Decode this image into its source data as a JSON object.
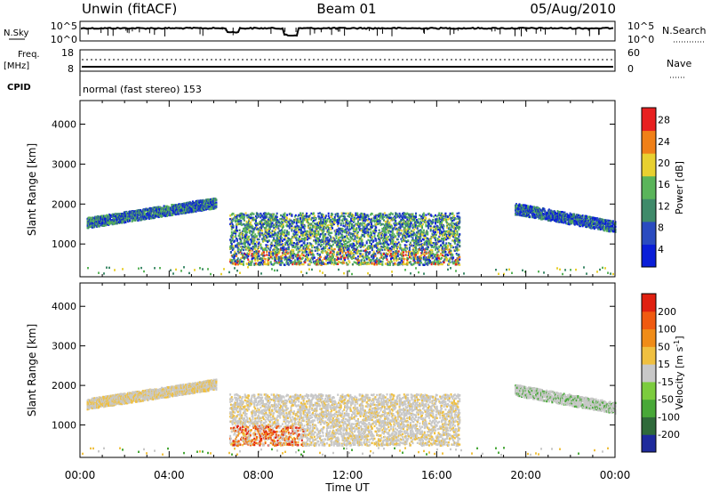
{
  "header": {
    "station": "Unwin (fitACF)",
    "beam": "Beam 01",
    "date": "05/Aug/2010"
  },
  "strip_labels": {
    "nsky": "N.Sky",
    "nsky_hi": "10^5",
    "nsky_lo": "10^0",
    "nsearch": "N.Search",
    "nsearch_hi": "10^5",
    "nsearch_lo": "10^0",
    "freq_top": "Freq.",
    "freq_unit": "[MHz]",
    "freq_hi": "18",
    "freq_lo": "8",
    "nave": "Nave",
    "nave_hi": "60",
    "nave_lo": "0",
    "cpid": "CPID",
    "cpid_text": "normal (fast stereo) 153"
  },
  "chart_data": [
    {
      "type": "heatmap",
      "name": "power",
      "ylabel": "Slant Range [km]",
      "xlabel": "",
      "xlim": [
        0,
        24
      ],
      "ylim": [
        180,
        4590
      ],
      "y_ticks": [
        1000,
        2000,
        3000,
        4000
      ],
      "colorbar": {
        "label": "Power [dB]",
        "ticks": [
          "4",
          "8",
          "12",
          "16",
          "20",
          "24",
          "28"
        ],
        "colors": [
          "#0a1ed8",
          "#2a4bc0",
          "#3f8a6a",
          "#5ab45a",
          "#e8d030",
          "#f08018",
          "#e82020"
        ]
      },
      "echo_regions": [
        {
          "t": [
            0.3,
            6.1
          ],
          "range_start": [
            1550,
            2050
          ],
          "width_km": 260
        },
        {
          "t": [
            6.7,
            17.0
          ],
          "range": [
            500,
            1800
          ]
        },
        {
          "t": [
            19.5,
            24.0
          ],
          "range_start": [
            1900,
            1450
          ],
          "width_km": 280
        }
      ]
    },
    {
      "type": "heatmap",
      "name": "velocity",
      "ylabel": "Slant Range [km]",
      "xlabel": "Time UT",
      "xlim": [
        0,
        24
      ],
      "ylim": [
        180,
        4590
      ],
      "y_ticks": [
        1000,
        2000,
        3000,
        4000
      ],
      "x_ticks": [
        "00:00",
        "04:00",
        "08:00",
        "12:00",
        "16:00",
        "20:00",
        "00:00"
      ],
      "colorbar": {
        "label": "Velocity [m s^-1]",
        "ticks": [
          "200",
          "100",
          "50",
          "15",
          "-15",
          "-50",
          "-100",
          "-200"
        ],
        "colors": [
          "#1e2a9c",
          "#2f6a3a",
          "#48a838",
          "#7ccc3e",
          "#c8c8c8",
          "#f0c040",
          "#f08c18",
          "#f05a10",
          "#e02010"
        ]
      }
    }
  ]
}
